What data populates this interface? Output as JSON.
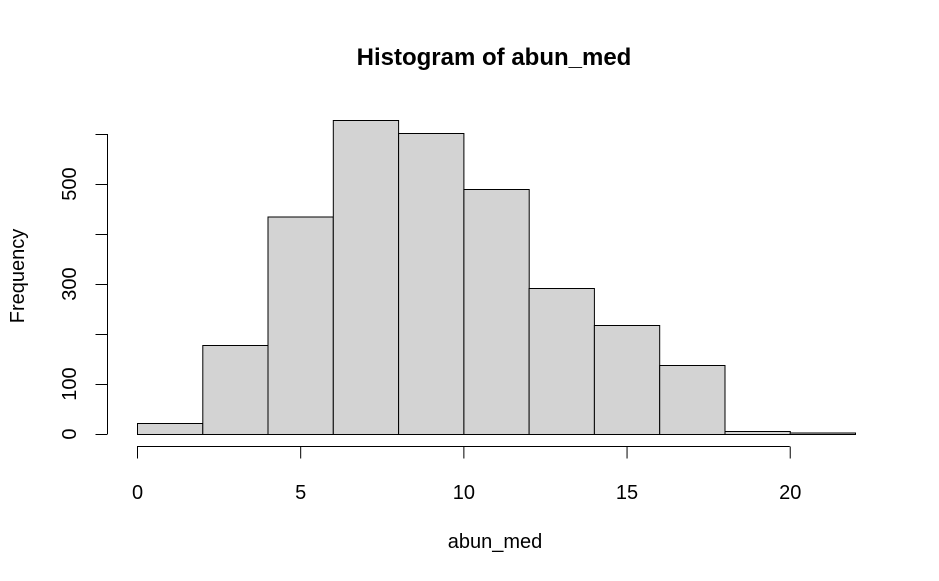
{
  "chart_data": {
    "type": "bar",
    "title": "Histogram of abun_med",
    "xlabel": "abun_med",
    "ylabel": "Frequency",
    "bin_edges": [
      0,
      2,
      4,
      6,
      8,
      10,
      12,
      14,
      16,
      18,
      20,
      22
    ],
    "values": [
      22,
      178,
      435,
      628,
      602,
      490,
      292,
      218,
      138,
      6,
      3
    ],
    "xlim": [
      0,
      22
    ],
    "ylim": [
      0,
      600
    ],
    "x_ticks": [
      0,
      5,
      10,
      15,
      20
    ],
    "y_ticks": [
      0,
      100,
      300,
      500
    ],
    "y_tick_marks": [
      0,
      100,
      200,
      300,
      400,
      500,
      600
    ],
    "bar_color": "#d3d3d3",
    "grid": false,
    "legend": "none"
  }
}
